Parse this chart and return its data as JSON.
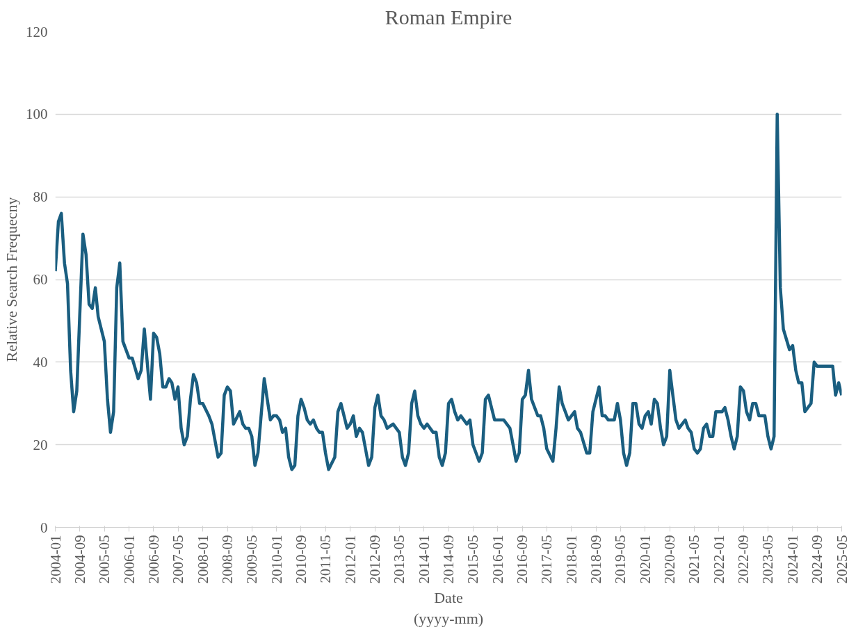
{
  "chart_data": {
    "type": "line",
    "title": "Roman Empire",
    "xlabel": "Date\n(yyyy-mm)",
    "ylabel": "Relative Search Frequecny",
    "xlim": [
      "2004-01",
      "2025-05"
    ],
    "xticks": [
      "2004-01",
      "2004-09",
      "2005-05",
      "2006-01",
      "2006-09",
      "2007-05",
      "2008-01",
      "2008-09",
      "2009-05",
      "2010-01",
      "2010-09",
      "2011-05",
      "2012-01",
      "2012-09",
      "2013-05",
      "2014-01",
      "2014-09",
      "2015-05",
      "2016-01",
      "2016-09",
      "2017-05",
      "2018-01",
      "2018-09",
      "2019-05",
      "2020-01",
      "2020-09",
      "2021-05",
      "2022-01",
      "2022-09",
      "2023-05",
      "2024-01",
      "2024-09",
      "2025-05"
    ],
    "ylim": [
      0,
      120
    ],
    "yticks": [
      0,
      20,
      40,
      60,
      80,
      100,
      120
    ],
    "grid": "y",
    "x": [
      "2004-01",
      "2004-02",
      "2004-03",
      "2004-04",
      "2004-05",
      "2004-06",
      "2004-07",
      "2004-08",
      "2004-10",
      "2004-11",
      "2004-12",
      "2005-01",
      "2005-02",
      "2005-03",
      "2005-05",
      "2005-06",
      "2005-07",
      "2005-08",
      "2005-09",
      "2005-10",
      "2005-11",
      "2006-01",
      "2006-02",
      "2006-04",
      "2006-05",
      "2006-06",
      "2006-08",
      "2006-09",
      "2006-10",
      "2006-11",
      "2006-12",
      "2007-01",
      "2007-02",
      "2007-03",
      "2007-04",
      "2007-05",
      "2007-06",
      "2007-07",
      "2007-08",
      "2007-09",
      "2007-10",
      "2007-11",
      "2007-12",
      "2008-01",
      "2008-03",
      "2008-04",
      "2008-06",
      "2008-07",
      "2008-08",
      "2008-09",
      "2008-10",
      "2008-11",
      "2009-01",
      "2009-02",
      "2009-03",
      "2009-04",
      "2009-05",
      "2009-06",
      "2009-07",
      "2009-09",
      "2009-10",
      "2009-11",
      "2009-12",
      "2010-01",
      "2010-02",
      "2010-03",
      "2010-04",
      "2010-05",
      "2010-06",
      "2010-07",
      "2010-08",
      "2010-09",
      "2010-10",
      "2010-11",
      "2010-12",
      "2011-01",
      "2011-02",
      "2011-03",
      "2011-04",
      "2011-05",
      "2011-06",
      "2011-08",
      "2011-09",
      "2011-10",
      "2011-12",
      "2012-01",
      "2012-02",
      "2012-03",
      "2012-04",
      "2012-05",
      "2012-07",
      "2012-08",
      "2012-09",
      "2012-10",
      "2012-11",
      "2012-12",
      "2013-01",
      "2013-03",
      "2013-05",
      "2013-06",
      "2013-07",
      "2013-08",
      "2013-09",
      "2013-10",
      "2013-11",
      "2013-12",
      "2014-01",
      "2014-02",
      "2014-04",
      "2014-05",
      "2014-06",
      "2014-07",
      "2014-08",
      "2014-09",
      "2014-10",
      "2014-11",
      "2014-12",
      "2015-01",
      "2015-03",
      "2015-04",
      "2015-05",
      "2015-07",
      "2015-08",
      "2015-09",
      "2015-10",
      "2015-12",
      "2016-03",
      "2016-05",
      "2016-06",
      "2016-07",
      "2016-08",
      "2016-09",
      "2016-10",
      "2016-11",
      "2016-12",
      "2017-02",
      "2017-03",
      "2017-04",
      "2017-05",
      "2017-07",
      "2017-08",
      "2017-09",
      "2017-10",
      "2017-12",
      "2018-02",
      "2018-03",
      "2018-04",
      "2018-06",
      "2018-07",
      "2018-08",
      "2018-10",
      "2018-11",
      "2018-12",
      "2019-01",
      "2019-03",
      "2019-04",
      "2019-05",
      "2019-06",
      "2019-07",
      "2019-08",
      "2019-09",
      "2019-10",
      "2019-11",
      "2019-12",
      "2020-01",
      "2020-02",
      "2020-03",
      "2020-04",
      "2020-05",
      "2020-06",
      "2020-07",
      "2020-08",
      "2020-09",
      "2020-10",
      "2020-11",
      "2020-12",
      "2021-02",
      "2021-03",
      "2021-04",
      "2021-05",
      "2021-06",
      "2021-07",
      "2021-08",
      "2021-09",
      "2021-10",
      "2021-11",
      "2021-12",
      "2022-02",
      "2022-03",
      "2022-04",
      "2022-05",
      "2022-06",
      "2022-07",
      "2022-08",
      "2022-09",
      "2022-10",
      "2022-11",
      "2022-12",
      "2023-01",
      "2023-02",
      "2023-04",
      "2023-05",
      "2023-06",
      "2023-07",
      "2023-08",
      "2023-09",
      "2023-10",
      "2023-12",
      "2024-01",
      "2024-02",
      "2024-03",
      "2024-04",
      "2024-05",
      "2024-07",
      "2024-08",
      "2024-09",
      "2025-02",
      "2025-03",
      "2025-04",
      "2025-05"
    ],
    "series": [
      {
        "color": "#1a5e80",
        "values": [
          62,
          74,
          76,
          64,
          59,
          38,
          28,
          33,
          71,
          66,
          54,
          53,
          58,
          51,
          45,
          31,
          23,
          28,
          58,
          64,
          45,
          41,
          41,
          36,
          38,
          48,
          31,
          47,
          46,
          42,
          34,
          34,
          36,
          35,
          31,
          34,
          24,
          20,
          22,
          31,
          37,
          35,
          30,
          30,
          27,
          25,
          17,
          18,
          32,
          34,
          33,
          25,
          28,
          25,
          24,
          24,
          22,
          15,
          18,
          36,
          31,
          26,
          27,
          27,
          26,
          23,
          24,
          17,
          14,
          15,
          27,
          31,
          29,
          26,
          25,
          26,
          24,
          23,
          23,
          18,
          14,
          17,
          28,
          30,
          24,
          25,
          27,
          22,
          24,
          23,
          15,
          17,
          29,
          32,
          27,
          26,
          24,
          25,
          23,
          17,
          15,
          18,
          30,
          33,
          27,
          25,
          24,
          25,
          23,
          23,
          17,
          15,
          18,
          30,
          31,
          28,
          26,
          27,
          25,
          26,
          20,
          16,
          18,
          31,
          32,
          26,
          26,
          24,
          20,
          16,
          18,
          31,
          32,
          38,
          31,
          27,
          27,
          24,
          19,
          16,
          24,
          34,
          30,
          26,
          28,
          24,
          23,
          18,
          18,
          28,
          34,
          27,
          27,
          26,
          26,
          30,
          26,
          18,
          15,
          18,
          30,
          30,
          25,
          24,
          27,
          28,
          25,
          31,
          30,
          24,
          20,
          22,
          38,
          32,
          26,
          24,
          26,
          24,
          23,
          19,
          18,
          19,
          24,
          25,
          22,
          22,
          28,
          28,
          29,
          26,
          22,
          19,
          22,
          34,
          33,
          28,
          26,
          30,
          30,
          27,
          27,
          22,
          19,
          22,
          100,
          58,
          48,
          43,
          44,
          38,
          35,
          35,
          28,
          30,
          40,
          39,
          39,
          32,
          35,
          32
        ]
      }
    ]
  }
}
